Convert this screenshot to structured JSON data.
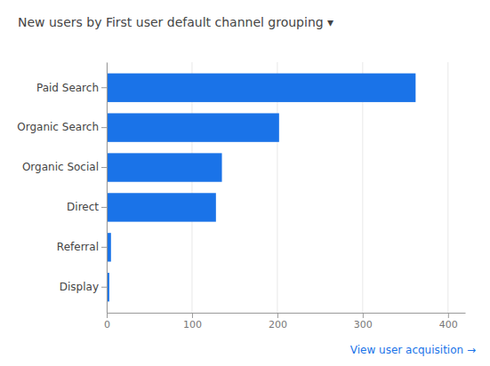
{
  "chart_data": {
    "type": "bar",
    "orientation": "horizontal",
    "title": "New users by First user default channel grouping ▾",
    "categories": [
      "Display",
      "Referral",
      "Direct",
      "Organic Social",
      "Organic Search",
      "Paid Search"
    ],
    "values": [
      3,
      5,
      128,
      135,
      202,
      362
    ],
    "color": "#1a73e8",
    "xlim": [
      0,
      420
    ],
    "xticks": [
      0,
      100,
      200,
      300,
      400
    ],
    "grid": true,
    "annotations": [
      "View user acquisition →"
    ]
  }
}
